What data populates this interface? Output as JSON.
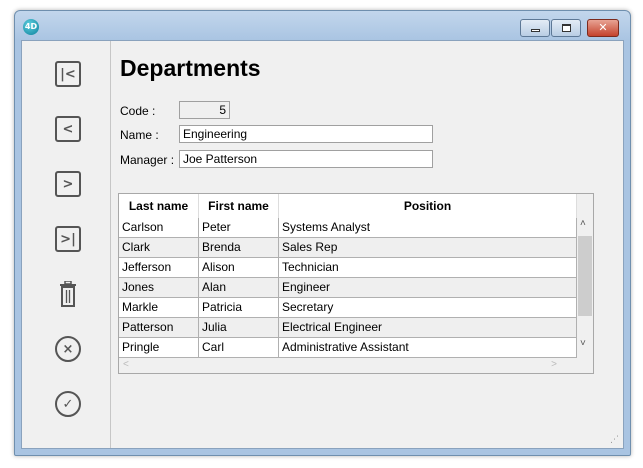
{
  "window": {
    "logo": "4D",
    "close": "✕"
  },
  "title": "Departments",
  "form": {
    "code_label": "Code :",
    "code_value": "5",
    "name_label": "Name :",
    "name_value": "Engineering",
    "manager_label": "Manager :",
    "manager_value": "Joe Patterson"
  },
  "sidebar": {
    "icons": [
      "first-record-icon",
      "previous-record-icon",
      "next-record-icon",
      "last-record-icon",
      "delete-icon",
      "cancel-icon",
      "validate-icon"
    ]
  },
  "table": {
    "columns": [
      "Last name",
      "First name",
      "Position"
    ],
    "rows": [
      [
        "Carlson",
        "Peter",
        "Systems Analyst"
      ],
      [
        "Clark",
        "Brenda",
        "Sales Rep"
      ],
      [
        "Jefferson",
        "Alison",
        "Technician"
      ],
      [
        "Jones",
        "Alan",
        "Engineer"
      ],
      [
        "Markle",
        "Patricia",
        "Secretary"
      ],
      [
        "Patterson",
        "Julia",
        "Electrical Engineer"
      ],
      [
        "Pringle",
        "Carl",
        "Administrative Assistant"
      ]
    ]
  }
}
